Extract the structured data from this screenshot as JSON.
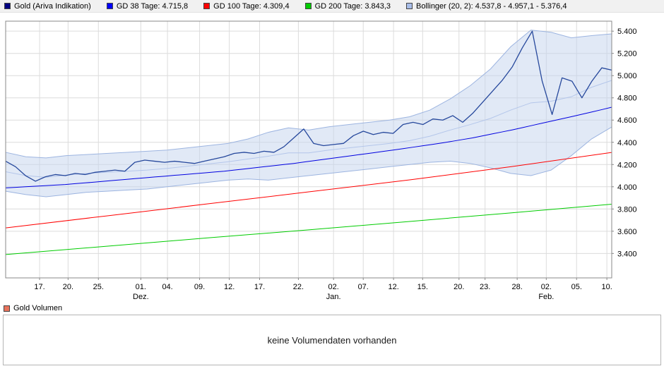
{
  "legend": {
    "items": [
      {
        "label": "Gold (Ariva Indikation)",
        "color": "#000080"
      },
      {
        "label": "GD 38 Tage: 4.715,8",
        "color": "#0000ff"
      },
      {
        "label": "GD 100 Tage: 4.309,4",
        "color": "#ff0000"
      },
      {
        "label": "GD 200 Tage: 3.843,3",
        "color": "#00cc00"
      },
      {
        "label": "Bollinger (20, 2): 4.537,8 - 4.957,1 - 5.376,4",
        "color": "#a8bde8"
      }
    ]
  },
  "volume": {
    "legend_label": "Gold Volumen",
    "legend_color": "#e8735c",
    "empty_message": "keine Volumendaten vorhanden"
  },
  "chart_data": {
    "type": "line",
    "title": "Gold (Ariva Indikation)",
    "value_range": [
      3180,
      5490
    ],
    "colors": {
      "grid": "#dcdcdc",
      "border": "#888888",
      "text": "#000000"
    },
    "y_ticks": [
      {
        "value": 5400,
        "label": "5.400"
      },
      {
        "value": 5200,
        "label": "5.200"
      },
      {
        "value": 5000,
        "label": "5.000"
      },
      {
        "value": 4800,
        "label": "4.800"
      },
      {
        "value": 4600,
        "label": "4.600"
      },
      {
        "value": 4400,
        "label": "4.400"
      },
      {
        "value": 4200,
        "label": "4.200"
      },
      {
        "value": 4000,
        "label": "4.000"
      },
      {
        "value": 3800,
        "label": "3.800"
      },
      {
        "value": 3600,
        "label": "3.600"
      },
      {
        "value": 3400,
        "label": "3.400"
      }
    ],
    "x_ticks": [
      {
        "pos": 0.056,
        "label": "17."
      },
      {
        "pos": 0.103,
        "label": "20."
      },
      {
        "pos": 0.153,
        "label": "25."
      },
      {
        "pos": 0.223,
        "label": "01."
      },
      {
        "pos": 0.267,
        "label": "04."
      },
      {
        "pos": 0.32,
        "label": "09."
      },
      {
        "pos": 0.369,
        "label": "12."
      },
      {
        "pos": 0.419,
        "label": "17."
      },
      {
        "pos": 0.483,
        "label": "22."
      },
      {
        "pos": 0.541,
        "label": "02."
      },
      {
        "pos": 0.59,
        "label": "07."
      },
      {
        "pos": 0.64,
        "label": "12."
      },
      {
        "pos": 0.688,
        "label": "15."
      },
      {
        "pos": 0.748,
        "label": "20."
      },
      {
        "pos": 0.791,
        "label": "23."
      },
      {
        "pos": 0.844,
        "label": "28."
      },
      {
        "pos": 0.892,
        "label": "02."
      },
      {
        "pos": 0.942,
        "label": "05."
      },
      {
        "pos": 0.992,
        "label": "10."
      }
    ],
    "x_months": [
      {
        "pos": 0.223,
        "label": "Dez."
      },
      {
        "pos": 0.541,
        "label": "Jan."
      },
      {
        "pos": 0.892,
        "label": "Feb."
      }
    ],
    "band": {
      "name": "Bollinger (20, 2)",
      "fill": "#c4d4ee",
      "opacity": 0.5,
      "line_color": "#9cb4e0",
      "middle_color": "#b4c6ea",
      "upper": [
        4310,
        4270,
        4260,
        4280,
        4290,
        4300,
        4310,
        4320,
        4330,
        4350,
        4370,
        4390,
        4430,
        4490,
        4530,
        4510,
        4540,
        4560,
        4580,
        4600,
        4630,
        4690,
        4790,
        4910,
        5060,
        5260,
        5410,
        5390,
        5340,
        5360,
        5376
      ],
      "middle": [
        4135,
        4100,
        4085,
        4105,
        4120,
        4130,
        4140,
        4150,
        4165,
        4185,
        4205,
        4225,
        4250,
        4275,
        4305,
        4305,
        4330,
        4350,
        4370,
        4390,
        4415,
        4455,
        4510,
        4560,
        4615,
        4690,
        4755,
        4770,
        4810,
        4895,
        4957
      ],
      "lower": [
        3960,
        3930,
        3910,
        3930,
        3950,
        3960,
        3970,
        3980,
        4000,
        4020,
        4040,
        4060,
        4070,
        4060,
        4080,
        4100,
        4120,
        4140,
        4160,
        4180,
        4200,
        4220,
        4230,
        4210,
        4170,
        4120,
        4100,
        4150,
        4280,
        4430,
        4538
      ]
    },
    "series": [
      {
        "name": "GD 200 Tage",
        "color": "#00cc00",
        "width": 1,
        "values": [
          3390,
          3465,
          3540,
          3612,
          3688,
          3765,
          3843
        ]
      },
      {
        "name": "GD 100 Tage",
        "color": "#ff0000",
        "width": 1,
        "values": [
          3630,
          3738,
          3846,
          3954,
          4062,
          4180,
          4309
        ]
      },
      {
        "name": "GD 38 Tage",
        "color": "#0000e0",
        "width": 1,
        "values": [
          3990,
          3995,
          4000,
          4005,
          4010,
          4015,
          4020,
          4028,
          4035,
          4042,
          4050,
          4058,
          4065,
          4073,
          4080,
          4088,
          4095,
          4103,
          4110,
          4118,
          4125,
          4133,
          4140,
          4150,
          4160,
          4170,
          4180,
          4190,
          4200,
          4210,
          4222,
          4234,
          4246,
          4258,
          4270,
          4282,
          4294,
          4306,
          4318,
          4330,
          4343,
          4356,
          4369,
          4382,
          4395,
          4410,
          4425,
          4440,
          4458,
          4476,
          4494,
          4512,
          4532,
          4552,
          4572,
          4592,
          4612,
          4632,
          4652,
          4673,
          4694,
          4716
        ]
      },
      {
        "name": "Gold (Ariva Indikation)",
        "color": "#26489c",
        "width": 1.3,
        "values": [
          4230,
          4180,
          4100,
          4050,
          4090,
          4110,
          4100,
          4120,
          4110,
          4130,
          4140,
          4150,
          4140,
          4220,
          4240,
          4230,
          4220,
          4230,
          4220,
          4210,
          4230,
          4250,
          4270,
          4300,
          4310,
          4300,
          4320,
          4310,
          4360,
          4440,
          4520,
          4390,
          4370,
          4380,
          4390,
          4460,
          4500,
          4470,
          4490,
          4480,
          4560,
          4580,
          4560,
          4610,
          4600,
          4640,
          4580,
          4660,
          4760,
          4860,
          4960,
          5080,
          5250,
          5400,
          4950,
          4650,
          4980,
          4950,
          4800,
          4950,
          5070,
          5050
        ]
      }
    ]
  }
}
